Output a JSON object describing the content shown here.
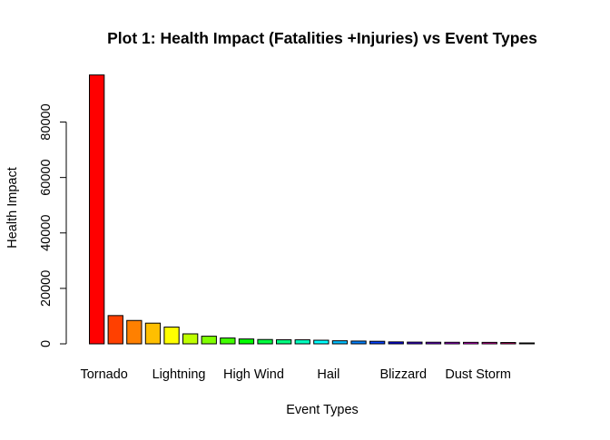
{
  "chart_data": {
    "type": "bar",
    "title": "Plot 1: Health Impact (Fatalities  +Injuries) vs Event Types",
    "xlabel": "Event Types",
    "ylabel": "Health Impact",
    "ylim": [
      0,
      100000
    ],
    "yticks": [
      0,
      20000,
      40000,
      60000,
      80000
    ],
    "grid": false,
    "legend": "none",
    "shown_category_labels": [
      "Tornado",
      "Lightning",
      "High Wind",
      "Hail",
      "Blizzard",
      "Dust Storm"
    ],
    "label_every": 4,
    "values": [
      96979,
      10200,
      8428,
      7461,
      6046,
      3600,
      2750,
      2100,
      1750,
      1561,
      1463,
      1450,
      1300,
      1100,
      1000,
      920,
      700,
      620,
      580,
      560,
      540,
      530,
      480,
      190
    ],
    "colors": [
      "#FF0000",
      "#FF4000",
      "#FF8000",
      "#FFBF00",
      "#FFFF00",
      "#BFFF00",
      "#80FF00",
      "#40FF00",
      "#00FF00",
      "#00FF40",
      "#00FF80",
      "#00FFBF",
      "#00FFFF",
      "#00BFFF",
      "#0080FF",
      "#0040FF",
      "#0000FF",
      "#4000FF",
      "#8000FF",
      "#BF00FF",
      "#FF00FF",
      "#FF00BF",
      "#FF0080",
      "#FF0040"
    ]
  }
}
